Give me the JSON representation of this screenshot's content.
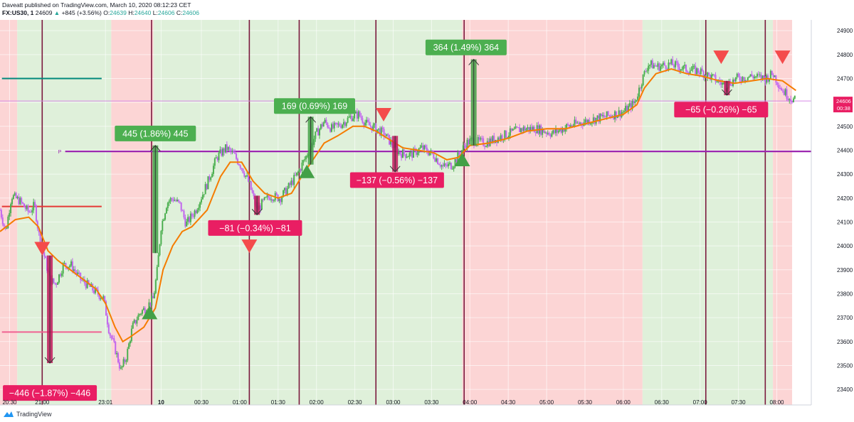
{
  "header": {
    "publisher_line": "Daveatt published on TradingView.com, March 10, 2020 08:12:23 CET",
    "symbol": "FX:US30, 1",
    "last": "24609",
    "change": "+845 (+3.56%)",
    "o_label": "O:",
    "o_value": "24639",
    "h_label": "H:",
    "h_value": "24640",
    "l_label": "L:",
    "l_value": "24606",
    "c_label": "C:",
    "c_value": "24606"
  },
  "footer": {
    "brand": "TradingView"
  },
  "colors": {
    "green_zone": "#dff0da",
    "red_zone": "#fcd5d5",
    "bull_candle": "#4caf50",
    "bear_candle": "#c165ee",
    "ema": "#f57c00",
    "pivot": "#9c27b0",
    "vline": "#7b1a3e",
    "up_label": "#4caf50",
    "down_label": "#e91e63",
    "price_tag": "#e91e63"
  },
  "chart_data": {
    "type": "line",
    "title": "",
    "y_ticks": [
      23400,
      23500,
      23600,
      23700,
      23800,
      23900,
      24000,
      24100,
      24200,
      24300,
      24400,
      24500,
      24600,
      24700,
      24800,
      24900
    ],
    "ylim": [
      23335,
      24945
    ],
    "x_ticks": [
      "20:30",
      "21:00",
      "23:01",
      "10",
      "00:30",
      "01:00",
      "01:30",
      "02:00",
      "02:30",
      "03:00",
      "03:30",
      "04:00",
      "04:30",
      "05:00",
      "05:30",
      "06:00",
      "06:30",
      "07:00",
      "07:30",
      "08:00"
    ],
    "x_tick_index": [
      0.5,
      2.2,
      5.5,
      8.4,
      10.5,
      12.5,
      14.5,
      16.5,
      18.5,
      20.5,
      22.5,
      24.5,
      26.5,
      28.5,
      30.5,
      32.5,
      34.5,
      36.5,
      38.5,
      40.5
    ],
    "x_domain": [
      0,
      42.3
    ],
    "price_path": [
      [
        0,
        24150
      ],
      [
        0.3,
        24060
      ],
      [
        0.6,
        24210
      ],
      [
        1.0,
        24190
      ],
      [
        1.5,
        24140
      ],
      [
        1.8,
        24170
      ],
      [
        2.1,
        24010
      ],
      [
        2.3,
        23960
      ],
      [
        2.6,
        23860
      ],
      [
        2.9,
        23840
      ],
      [
        3.3,
        23920
      ],
      [
        3.7,
        23920
      ],
      [
        4.2,
        23860
      ],
      [
        4.8,
        23820
      ],
      [
        5.4,
        23780
      ],
      [
        5.7,
        23640
      ],
      [
        6.0,
        23570
      ],
      [
        6.3,
        23480
      ],
      [
        6.6,
        23540
      ],
      [
        6.9,
        23660
      ],
      [
        7.3,
        23720
      ],
      [
        7.7,
        23750
      ],
      [
        8.0,
        23780
      ],
      [
        8.2,
        23900
      ],
      [
        8.4,
        24080
      ],
      [
        8.7,
        24180
      ],
      [
        9.0,
        24200
      ],
      [
        9.4,
        24170
      ],
      [
        9.7,
        24090
      ],
      [
        10.2,
        24150
      ],
      [
        10.8,
        24260
      ],
      [
        11.3,
        24370
      ],
      [
        11.8,
        24410
      ],
      [
        12.2,
        24380
      ],
      [
        12.6,
        24330
      ],
      [
        13.0,
        24260
      ],
      [
        13.4,
        24150
      ],
      [
        13.7,
        24180
      ],
      [
        14.1,
        24210
      ],
      [
        14.6,
        24200
      ],
      [
        15.0,
        24240
      ],
      [
        15.5,
        24300
      ],
      [
        16.0,
        24380
      ],
      [
        16.5,
        24470
      ],
      [
        16.9,
        24520
      ],
      [
        17.3,
        24490
      ],
      [
        17.8,
        24510
      ],
      [
        18.3,
        24540
      ],
      [
        18.7,
        24550
      ],
      [
        19.1,
        24510
      ],
      [
        19.6,
        24490
      ],
      [
        20.0,
        24470
      ],
      [
        20.4,
        24430
      ],
      [
        20.8,
        24390
      ],
      [
        21.4,
        24380
      ],
      [
        22.0,
        24410
      ],
      [
        22.6,
        24380
      ],
      [
        23.1,
        24330
      ],
      [
        23.6,
        24340
      ],
      [
        24.0,
        24390
      ],
      [
        24.3,
        24430
      ],
      [
        24.6,
        24440
      ],
      [
        25.3,
        24430
      ],
      [
        26.2,
        24460
      ],
      [
        27.2,
        24490
      ],
      [
        28.0,
        24490
      ],
      [
        28.8,
        24470
      ],
      [
        29.6,
        24500
      ],
      [
        30.5,
        24520
      ],
      [
        31.5,
        24540
      ],
      [
        32.5,
        24560
      ],
      [
        33.1,
        24600
      ],
      [
        33.5,
        24700
      ],
      [
        33.8,
        24760
      ],
      [
        34.3,
        24750
      ],
      [
        35.0,
        24760
      ],
      [
        35.7,
        24740
      ],
      [
        36.5,
        24730
      ],
      [
        37.2,
        24700
      ],
      [
        37.8,
        24670
      ],
      [
        38.4,
        24700
      ],
      [
        39.2,
        24710
      ],
      [
        39.9,
        24700
      ],
      [
        40.3,
        24720
      ],
      [
        40.8,
        24650
      ],
      [
        41.2,
        24620
      ],
      [
        41.5,
        24606
      ]
    ],
    "ema_path": [
      [
        0,
        24060
      ],
      [
        0.8,
        24110
      ],
      [
        1.5,
        24120
      ],
      [
        2.0,
        24080
      ],
      [
        2.5,
        23980
      ],
      [
        3.0,
        23940
      ],
      [
        3.5,
        23910
      ],
      [
        4.0,
        23880
      ],
      [
        4.5,
        23850
      ],
      [
        5.0,
        23820
      ],
      [
        5.5,
        23760
      ],
      [
        6.0,
        23660
      ],
      [
        6.4,
        23600
      ],
      [
        6.8,
        23620
      ],
      [
        7.5,
        23660
      ],
      [
        8.1,
        23740
      ],
      [
        8.5,
        23900
      ],
      [
        9.0,
        24000
      ],
      [
        9.5,
        24060
      ],
      [
        10.0,
        24080
      ],
      [
        10.8,
        24150
      ],
      [
        11.5,
        24290
      ],
      [
        12.0,
        24350
      ],
      [
        12.6,
        24350
      ],
      [
        13.2,
        24270
      ],
      [
        13.8,
        24220
      ],
      [
        14.5,
        24200
      ],
      [
        15.2,
        24220
      ],
      [
        15.8,
        24300
      ],
      [
        16.4,
        24370
      ],
      [
        16.9,
        24430
      ],
      [
        17.6,
        24460
      ],
      [
        18.4,
        24500
      ],
      [
        19.0,
        24500
      ],
      [
        19.6,
        24480
      ],
      [
        20.4,
        24440
      ],
      [
        21.0,
        24410
      ],
      [
        21.8,
        24400
      ],
      [
        22.6,
        24390
      ],
      [
        23.3,
        24360
      ],
      [
        23.9,
        24370
      ],
      [
        24.5,
        24420
      ],
      [
        25.5,
        24430
      ],
      [
        26.5,
        24450
      ],
      [
        27.5,
        24480
      ],
      [
        28.5,
        24490
      ],
      [
        29.5,
        24490
      ],
      [
        30.5,
        24510
      ],
      [
        31.5,
        24530
      ],
      [
        32.5,
        24550
      ],
      [
        33.2,
        24590
      ],
      [
        33.6,
        24660
      ],
      [
        34.2,
        24720
      ],
      [
        35.0,
        24740
      ],
      [
        35.8,
        24720
      ],
      [
        36.6,
        24710
      ],
      [
        37.5,
        24690
      ],
      [
        38.3,
        24680
      ],
      [
        39.2,
        24690
      ],
      [
        40.0,
        24700
      ],
      [
        40.8,
        24690
      ],
      [
        41.5,
        24650
      ]
    ],
    "zones": [
      {
        "from": 0,
        "to": 0.9,
        "kind": "red"
      },
      {
        "from": 0.9,
        "to": 5.8,
        "kind": "green"
      },
      {
        "from": 5.8,
        "to": 8.0,
        "kind": "red"
      },
      {
        "from": 8.0,
        "to": 24.1,
        "kind": "green"
      },
      {
        "from": 24.1,
        "to": 33.5,
        "kind": "red"
      },
      {
        "from": 33.5,
        "to": 40.3,
        "kind": "green"
      },
      {
        "from": 40.3,
        "to": 41.3,
        "kind": "red"
      }
    ],
    "vlines": [
      2.2,
      7.9,
      13.0,
      15.6,
      19.6,
      24.2,
      36.8,
      39.9
    ],
    "pivot_level": 24395,
    "pivot_tag": "P",
    "hlines": [
      {
        "from": 0.1,
        "to": 5.3,
        "y": 24700,
        "color": "#00897b"
      },
      {
        "from": 0.1,
        "to": 5.3,
        "y": 24165,
        "color": "#e53935"
      },
      {
        "from": 0.1,
        "to": 5.3,
        "y": 23640,
        "color": "#f06292"
      },
      {
        "from": 0,
        "to": 42.3,
        "y": 24606,
        "color": "#d88ae6"
      }
    ],
    "arrows_up": [
      [
        7.8,
        23720
      ],
      [
        16.0,
        24310
      ],
      [
        24.1,
        24360
      ]
    ],
    "arrows_down": [
      [
        2.2,
        23990
      ],
      [
        13.0,
        24000
      ],
      [
        20.0,
        24550
      ],
      [
        37.6,
        24790
      ],
      [
        40.8,
        24790
      ]
    ],
    "bars": [
      {
        "x": 2.6,
        "from": 23960,
        "to": 23510,
        "dir": "down"
      },
      {
        "x": 8.1,
        "from": 23970,
        "to": 24420,
        "dir": "up"
      },
      {
        "x": 13.4,
        "from": 24210,
        "to": 24130,
        "dir": "down"
      },
      {
        "x": 16.2,
        "from": 24340,
        "to": 24540,
        "dir": "up"
      },
      {
        "x": 20.6,
        "from": 24460,
        "to": 24310,
        "dir": "down"
      },
      {
        "x": 24.7,
        "from": 24420,
        "to": 24780,
        "dir": "up"
      },
      {
        "x": 37.9,
        "from": 24690,
        "to": 24630,
        "dir": "down"
      }
    ],
    "labels": [
      {
        "text": "−446 (−1.87%) −446",
        "x": 2.6,
        "y": 23385,
        "kind": "down"
      },
      {
        "text": "445 (1.86%) 445",
        "x": 8.1,
        "y": 24470,
        "kind": "up"
      },
      {
        "text": "−81 (−0.34%) −81",
        "x": 13.3,
        "y": 24075,
        "kind": "down"
      },
      {
        "text": "169 (0.69%) 169",
        "x": 16.4,
        "y": 24585,
        "kind": "up"
      },
      {
        "text": "−137 (−0.56%) −137",
        "x": 20.7,
        "y": 24275,
        "kind": "down"
      },
      {
        "text": "364 (1.49%) 364",
        "x": 24.3,
        "y": 24830,
        "kind": "up"
      },
      {
        "text": "−65 (−0.26%) −65",
        "x": 37.6,
        "y": 24570,
        "kind": "down"
      }
    ],
    "last_price": {
      "value": "24606",
      "timer": "00:38"
    },
    "grid": true,
    "candles_approximated": true
  }
}
